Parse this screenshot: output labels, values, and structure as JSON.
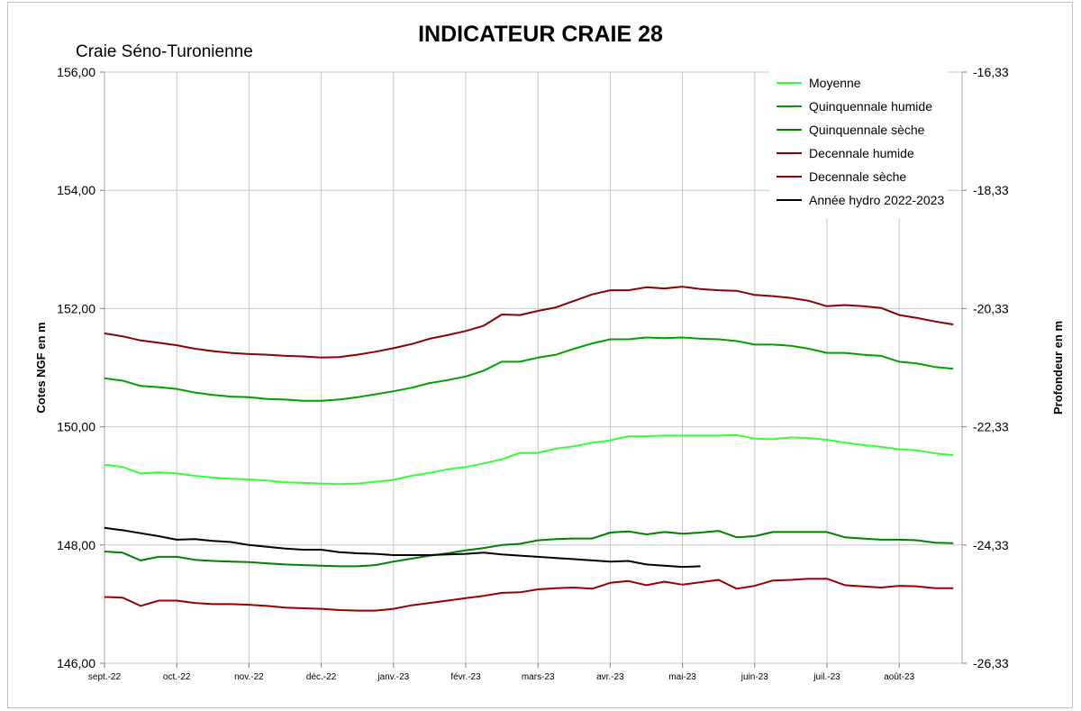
{
  "chart_data": {
    "type": "line",
    "title": "INDICATEUR CRAIE 28",
    "subtitle": "Craie Séno-Turonienne",
    "ylabel": "Cotes NGF en m",
    "y2label": "Profondeur en m",
    "ylim": [
      146,
      156
    ],
    "y2lim": [
      -26.33,
      -16.33
    ],
    "yticks": [
      "146,00",
      "148,00",
      "150,00",
      "152,00",
      "154,00",
      "156,00"
    ],
    "y2ticks": [
      "-26,33",
      "-24,33",
      "-22,33",
      "-20,33",
      "-18,33",
      "-16,33"
    ],
    "grid": true,
    "legend_position": "top-right",
    "x_categories": [
      "sept.-22",
      "oct.-22",
      "nov.-22",
      "déc.-22",
      "janv.-23",
      "févr.-23",
      "mars-23",
      "avr.-23",
      "mai-23",
      "juin-23",
      "juil.-23",
      "août-23"
    ],
    "x_range_months": [
      0,
      12
    ],
    "series": [
      {
        "name": "Moyenne",
        "color": "#33ff33",
        "x": [
          0,
          0.25,
          0.5,
          0.75,
          1,
          1.25,
          1.5,
          1.75,
          2,
          2.25,
          2.5,
          2.75,
          3,
          3.25,
          3.5,
          3.75,
          4,
          4.25,
          4.5,
          4.75,
          5,
          5.25,
          5.5,
          5.75,
          6,
          6.25,
          6.5,
          6.75,
          7,
          7.25,
          7.5,
          7.75,
          8,
          8.25,
          8.5,
          8.75,
          9,
          9.25,
          9.5,
          9.75,
          10,
          10.25,
          10.5,
          10.75,
          11,
          11.25,
          11.5,
          11.75
        ],
        "values": [
          149.36,
          149.32,
          149.21,
          149.23,
          149.21,
          149.17,
          149.14,
          149.12,
          149.11,
          149.09,
          149.06,
          149.05,
          149.04,
          149.03,
          149.04,
          149.07,
          149.1,
          149.17,
          149.22,
          149.28,
          149.32,
          149.38,
          149.45,
          149.56,
          149.56,
          149.63,
          149.67,
          149.73,
          149.77,
          149.84,
          149.84,
          149.85,
          149.85,
          149.85,
          149.85,
          149.86,
          149.8,
          149.79,
          149.82,
          149.81,
          149.78,
          149.73,
          149.69,
          149.66,
          149.62,
          149.6,
          149.55,
          149.52
        ]
      },
      {
        "name": "Quinquennale humide",
        "color": "#00a000",
        "x": [
          0,
          0.25,
          0.5,
          0.75,
          1,
          1.25,
          1.5,
          1.75,
          2,
          2.25,
          2.5,
          2.75,
          3,
          3.25,
          3.5,
          3.75,
          4,
          4.25,
          4.5,
          4.75,
          5,
          5.25,
          5.5,
          5.75,
          6,
          6.25,
          6.5,
          6.75,
          7,
          7.25,
          7.5,
          7.75,
          8,
          8.25,
          8.5,
          8.75,
          9,
          9.25,
          9.5,
          9.75,
          10,
          10.25,
          10.5,
          10.75,
          11,
          11.25,
          11.5,
          11.75
        ],
        "values": [
          150.82,
          150.78,
          150.69,
          150.67,
          150.64,
          150.58,
          150.54,
          150.51,
          150.5,
          150.47,
          150.46,
          150.44,
          150.44,
          150.46,
          150.5,
          150.55,
          150.6,
          150.66,
          150.74,
          150.79,
          150.85,
          150.95,
          151.1,
          151.1,
          151.17,
          151.22,
          151.32,
          151.41,
          151.48,
          151.48,
          151.51,
          151.5,
          151.51,
          151.49,
          151.48,
          151.45,
          151.39,
          151.39,
          151.37,
          151.32,
          151.25,
          151.25,
          151.22,
          151.2,
          151.1,
          151.07,
          151.01,
          150.98
        ]
      },
      {
        "name": "Quinquennale sèche",
        "color": "#008000",
        "x": [
          0,
          0.25,
          0.5,
          0.75,
          1,
          1.25,
          1.5,
          1.75,
          2,
          2.25,
          2.5,
          2.75,
          3,
          3.25,
          3.5,
          3.75,
          4,
          4.25,
          4.5,
          4.75,
          5,
          5.25,
          5.5,
          5.75,
          6,
          6.25,
          6.5,
          6.75,
          7,
          7.25,
          7.5,
          7.75,
          8,
          8.25,
          8.5,
          8.75,
          9,
          9.25,
          9.5,
          9.75,
          10,
          10.25,
          10.5,
          10.75,
          11,
          11.25,
          11.5,
          11.75
        ],
        "values": [
          147.89,
          147.87,
          147.74,
          147.8,
          147.8,
          147.75,
          147.73,
          147.72,
          147.71,
          147.69,
          147.67,
          147.66,
          147.65,
          147.64,
          147.64,
          147.66,
          147.72,
          147.77,
          147.82,
          147.86,
          147.91,
          147.95,
          148.0,
          148.02,
          148.08,
          148.1,
          148.11,
          148.11,
          148.21,
          148.23,
          148.18,
          148.22,
          148.19,
          148.21,
          148.24,
          148.13,
          148.15,
          148.22,
          148.22,
          148.22,
          148.22,
          148.13,
          148.11,
          148.09,
          148.09,
          148.08,
          148.04,
          148.03
        ]
      },
      {
        "name": "Decennale humide",
        "color": "#8b0000",
        "x": [
          0,
          0.25,
          0.5,
          0.75,
          1,
          1.25,
          1.5,
          1.75,
          2,
          2.25,
          2.5,
          2.75,
          3,
          3.25,
          3.5,
          3.75,
          4,
          4.25,
          4.5,
          4.75,
          5,
          5.25,
          5.5,
          5.75,
          6,
          6.25,
          6.5,
          6.75,
          7,
          7.25,
          7.5,
          7.75,
          8,
          8.25,
          8.5,
          8.75,
          9,
          9.25,
          9.5,
          9.75,
          10,
          10.25,
          10.5,
          10.75,
          11,
          11.25,
          11.5,
          11.75
        ],
        "values": [
          151.58,
          151.53,
          151.46,
          151.42,
          151.38,
          151.32,
          151.28,
          151.25,
          151.23,
          151.22,
          151.2,
          151.19,
          151.17,
          151.18,
          151.22,
          151.27,
          151.33,
          151.4,
          151.49,
          151.55,
          151.62,
          151.71,
          151.9,
          151.89,
          151.96,
          152.02,
          152.13,
          152.24,
          152.31,
          152.31,
          152.36,
          152.34,
          152.37,
          152.33,
          152.31,
          152.3,
          152.23,
          152.21,
          152.18,
          152.13,
          152.04,
          152.06,
          152.04,
          152.01,
          151.89,
          151.84,
          151.78,
          151.73
        ]
      },
      {
        "name": "Decennale sèche",
        "color": "#990000",
        "x": [
          0,
          0.25,
          0.5,
          0.75,
          1,
          1.25,
          1.5,
          1.75,
          2,
          2.25,
          2.5,
          2.75,
          3,
          3.25,
          3.5,
          3.75,
          4,
          4.25,
          4.5,
          4.75,
          5,
          5.25,
          5.5,
          5.75,
          6,
          6.25,
          6.5,
          6.75,
          7,
          7.25,
          7.5,
          7.75,
          8,
          8.25,
          8.5,
          8.75,
          9,
          9.25,
          9.5,
          9.75,
          10,
          10.25,
          10.5,
          10.75,
          11,
          11.25,
          11.5,
          11.75
        ],
        "values": [
          147.12,
          147.11,
          146.97,
          147.06,
          147.06,
          147.02,
          147.0,
          147.0,
          146.99,
          146.97,
          146.94,
          146.93,
          146.92,
          146.9,
          146.89,
          146.89,
          146.92,
          146.98,
          147.02,
          147.06,
          147.1,
          147.14,
          147.19,
          147.2,
          147.25,
          147.27,
          147.28,
          147.26,
          147.36,
          147.39,
          147.32,
          147.38,
          147.33,
          147.37,
          147.41,
          147.26,
          147.31,
          147.4,
          147.41,
          147.43,
          147.43,
          147.32,
          147.3,
          147.28,
          147.31,
          147.3,
          147.27,
          147.27
        ]
      },
      {
        "name": "Année hydro 2022-2023",
        "color": "#000000",
        "x": [
          0,
          0.25,
          0.5,
          0.75,
          1,
          1.25,
          1.5,
          1.75,
          2,
          2.25,
          2.5,
          2.75,
          3,
          3.25,
          3.5,
          3.75,
          4,
          4.25,
          4.5,
          4.75,
          5,
          5.25,
          5.5,
          5.75,
          6,
          6.25,
          6.5,
          6.75,
          7,
          7.25,
          7.5,
          7.75,
          8,
          8.25
        ],
        "values": [
          148.29,
          148.25,
          148.2,
          148.15,
          148.09,
          148.1,
          148.07,
          148.05,
          148.0,
          147.97,
          147.94,
          147.92,
          147.92,
          147.88,
          147.86,
          147.85,
          147.83,
          147.83,
          147.83,
          147.84,
          147.85,
          147.87,
          147.84,
          147.82,
          147.8,
          147.78,
          147.76,
          147.74,
          147.72,
          147.73,
          147.67,
          147.65,
          147.63,
          147.64
        ]
      }
    ]
  }
}
